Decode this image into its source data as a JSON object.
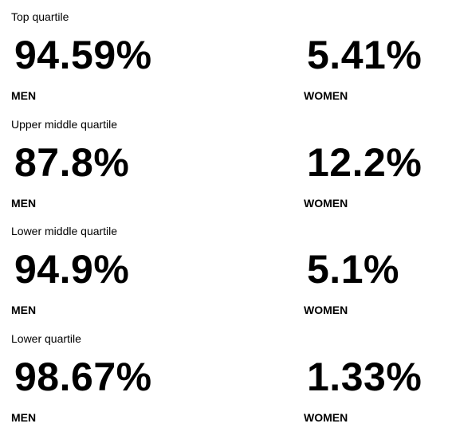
{
  "quartiles": [
    {
      "title": "Top quartile",
      "men": {
        "value": "94.59%",
        "label": "MEN"
      },
      "women": {
        "value": "5.41%",
        "label": "WOMEN"
      }
    },
    {
      "title": "Upper middle quartile",
      "men": {
        "value": "87.8%",
        "label": "MEN"
      },
      "women": {
        "value": "12.2%",
        "label": "WOMEN"
      }
    },
    {
      "title": "Lower middle quartile",
      "men": {
        "value": "94.9%",
        "label": "MEN"
      },
      "women": {
        "value": "5.1%",
        "label": "WOMEN"
      }
    },
    {
      "title": "Lower quartile",
      "men": {
        "value": "98.67%",
        "label": "MEN"
      },
      "women": {
        "value": "1.33%",
        "label": "WOMEN"
      }
    }
  ]
}
